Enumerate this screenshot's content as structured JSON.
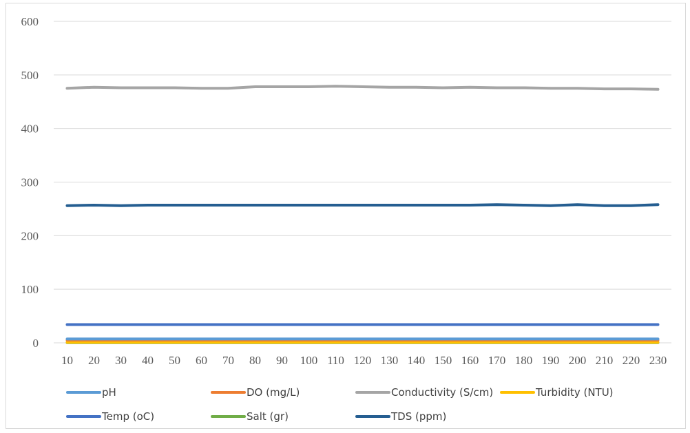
{
  "chart_data": {
    "type": "line",
    "title": "",
    "xlabel": "",
    "ylabel": "",
    "x": [
      10,
      20,
      30,
      40,
      50,
      60,
      70,
      80,
      90,
      100,
      110,
      120,
      130,
      140,
      150,
      160,
      170,
      180,
      190,
      200,
      210,
      220,
      230
    ],
    "ylim": [
      0,
      600
    ],
    "yticks": [
      0,
      100,
      200,
      300,
      400,
      500,
      600
    ],
    "grid": true,
    "legend_position": "bottom",
    "series": [
      {
        "name": "pH",
        "color": "#5b9bd5",
        "values": [
          7.2,
          7.2,
          7.2,
          7.2,
          7.2,
          7.2,
          7.2,
          7.2,
          7.2,
          7.2,
          7.2,
          7.2,
          7.2,
          7.2,
          7.2,
          7.2,
          7.2,
          7.2,
          7.2,
          7.2,
          7.2,
          7.2,
          7.2
        ]
      },
      {
        "name": "DO (mg/L)",
        "color": "#ed7d31",
        "values": [
          5,
          5,
          5,
          5,
          5,
          5,
          5,
          5,
          5,
          5,
          5,
          5,
          5,
          5,
          5,
          5,
          5,
          5,
          5,
          5,
          5,
          5,
          5
        ]
      },
      {
        "name": "Conductivity (S/cm)",
        "color": "#a5a5a5",
        "values": [
          475,
          477,
          476,
          476,
          476,
          475,
          475,
          478,
          478,
          478,
          479,
          478,
          477,
          477,
          476,
          477,
          476,
          476,
          475,
          475,
          474,
          474,
          473
        ]
      },
      {
        "name": "Turbidity (NTU)",
        "color": "#ffc000",
        "values": [
          1,
          1,
          1,
          1,
          1,
          1,
          1,
          1,
          1,
          1,
          1,
          1,
          1,
          1,
          1,
          1,
          1,
          1,
          1,
          1,
          1,
          1,
          1
        ]
      },
      {
        "name": "Temp (oC)",
        "color": "#4472c4",
        "values": [
          34,
          34,
          34,
          34,
          34,
          34,
          34,
          34,
          34,
          34,
          34,
          34,
          34,
          34,
          34,
          34,
          34,
          34,
          34,
          34,
          34,
          34,
          34
        ]
      },
      {
        "name": "Salt (gr)",
        "color": "#70ad47",
        "values": [
          0.3,
          0.3,
          0.3,
          0.3,
          0.3,
          0.3,
          0.3,
          0.3,
          0.3,
          0.3,
          0.3,
          0.3,
          0.3,
          0.3,
          0.3,
          0.3,
          0.3,
          0.3,
          0.3,
          0.3,
          0.3,
          0.3,
          0.3
        ]
      },
      {
        "name": "TDS (ppm)",
        "color": "#255e91",
        "values": [
          256,
          257,
          256,
          257,
          257,
          257,
          257,
          257,
          257,
          257,
          257,
          257,
          257,
          257,
          257,
          257,
          258,
          257,
          256,
          258,
          256,
          256,
          258
        ]
      }
    ]
  }
}
